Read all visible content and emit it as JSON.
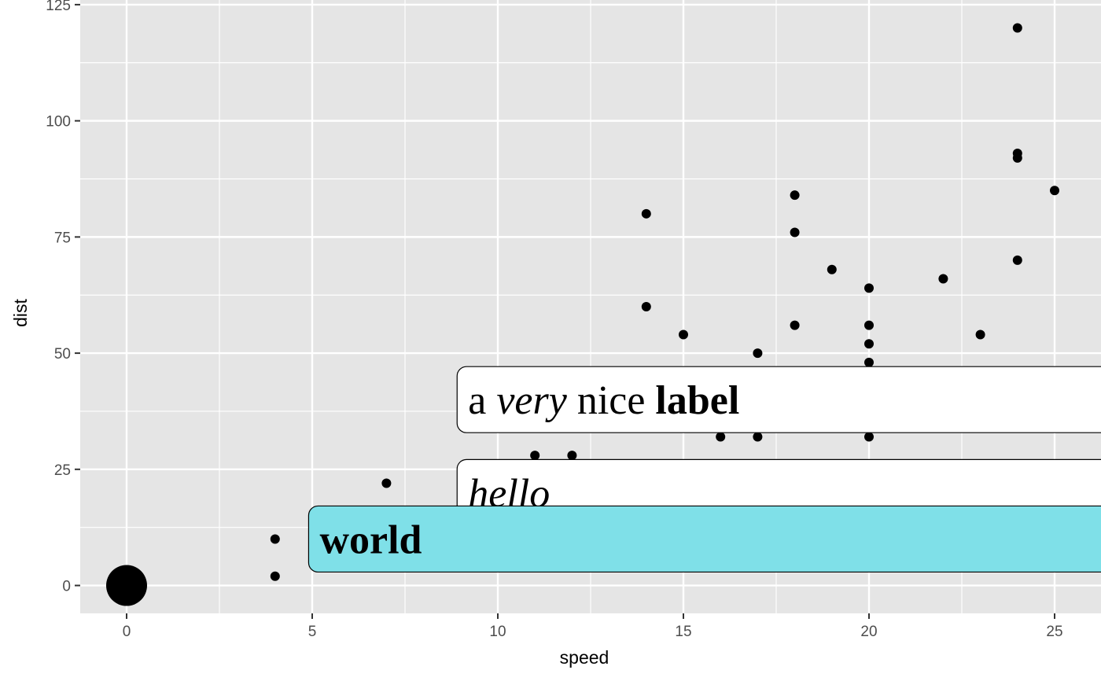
{
  "chart_data": {
    "type": "scatter",
    "xlabel": "speed",
    "ylabel": "dist",
    "xlim": [
      -1.25,
      26.25
    ],
    "ylim": [
      -6,
      126
    ],
    "x_ticks": [
      0,
      5,
      10,
      15,
      20,
      25
    ],
    "y_ticks": [
      0,
      25,
      50,
      75,
      100,
      125
    ],
    "grid": true,
    "panel_color": "#e5e5e5",
    "point_color": "#000000",
    "points": [
      {
        "x": 4,
        "y": 2
      },
      {
        "x": 4,
        "y": 10
      },
      {
        "x": 7,
        "y": 22
      },
      {
        "x": 11,
        "y": 28
      },
      {
        "x": 12,
        "y": 28
      },
      {
        "x": 14,
        "y": 80
      },
      {
        "x": 14,
        "y": 60
      },
      {
        "x": 15,
        "y": 54
      },
      {
        "x": 16,
        "y": 32
      },
      {
        "x": 17,
        "y": 50
      },
      {
        "x": 17,
        "y": 32
      },
      {
        "x": 18,
        "y": 84
      },
      {
        "x": 18,
        "y": 76
      },
      {
        "x": 18,
        "y": 56
      },
      {
        "x": 19,
        "y": 68
      },
      {
        "x": 20,
        "y": 64
      },
      {
        "x": 20,
        "y": 56
      },
      {
        "x": 20,
        "y": 52
      },
      {
        "x": 20,
        "y": 48
      },
      {
        "x": 20,
        "y": 32
      },
      {
        "x": 22,
        "y": 66
      },
      {
        "x": 23,
        "y": 54
      },
      {
        "x": 24,
        "y": 120
      },
      {
        "x": 24,
        "y": 93
      },
      {
        "x": 24,
        "y": 92
      },
      {
        "x": 24,
        "y": 70
      },
      {
        "x": 25,
        "y": 85
      }
    ],
    "highlight_point": {
      "x": 0,
      "y": 0,
      "size": "large"
    },
    "annotations": [
      {
        "x": 9.2,
        "y": 40,
        "fill": "#ffffff",
        "segments": [
          {
            "text": "a ",
            "style": "normal"
          },
          {
            "text": "very",
            "style": "italic"
          },
          {
            "text": " nice ",
            "style": "normal"
          },
          {
            "text": "label",
            "style": "bold"
          }
        ]
      },
      {
        "x": 9.2,
        "y": 20,
        "fill": "#ffffff",
        "segments": [
          {
            "text": "hello",
            "style": "italic"
          }
        ]
      },
      {
        "x": 5.2,
        "y": 10,
        "fill": "#7fe0e8",
        "segments": [
          {
            "text": "world",
            "style": "bold"
          }
        ]
      }
    ]
  }
}
